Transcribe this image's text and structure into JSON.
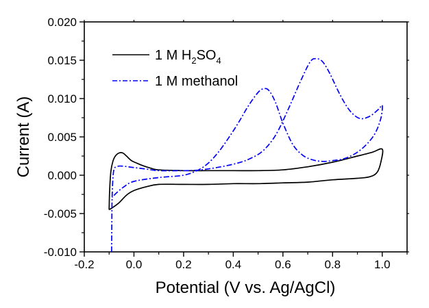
{
  "chart_data": {
    "type": "line",
    "title": "",
    "xlabel": "Potential (V vs. Ag/AgCl)",
    "ylabel": "Current (A)",
    "xlim": [
      -0.2,
      1.1
    ],
    "ylim": [
      -0.01,
      0.02
    ],
    "grid": false,
    "legend_position": "top-left",
    "x_ticks": [
      -0.2,
      0.0,
      0.2,
      0.4,
      0.6,
      0.8,
      1.0
    ],
    "x_tick_labels": [
      "-0.2",
      "0.0",
      "0.2",
      "0.4",
      "0.6",
      "0.8",
      "1.0"
    ],
    "y_ticks": [
      -0.01,
      -0.005,
      0.0,
      0.005,
      0.01,
      0.015,
      0.02
    ],
    "y_tick_labels": [
      "-0.010",
      "-0.005",
      "0.000",
      "0.005",
      "0.010",
      "0.015",
      "0.020"
    ],
    "series": [
      {
        "name": "1 M H2SO4",
        "legend_parts": {
          "pre": "1 M H",
          "sub1": "2",
          "mid": "SO",
          "sub2": "4"
        },
        "color": "#000000",
        "style": "solid",
        "points": [
          [
            -0.1,
            -0.0045
          ],
          [
            -0.098,
            -0.002
          ],
          [
            -0.093,
            0.0005
          ],
          [
            -0.085,
            0.0018
          ],
          [
            -0.075,
            0.0025
          ],
          [
            -0.06,
            0.0029
          ],
          [
            -0.045,
            0.0029
          ],
          [
            -0.03,
            0.0025
          ],
          [
            -0.01,
            0.0019
          ],
          [
            0.01,
            0.0016
          ],
          [
            0.04,
            0.0012
          ],
          [
            0.07,
            0.0009
          ],
          [
            0.1,
            0.0007
          ],
          [
            0.2,
            0.0006
          ],
          [
            0.3,
            0.0006
          ],
          [
            0.4,
            0.0006
          ],
          [
            0.5,
            0.0006
          ],
          [
            0.6,
            0.0007
          ],
          [
            0.7,
            0.0011
          ],
          [
            0.8,
            0.0017
          ],
          [
            0.9,
            0.0025
          ],
          [
            0.96,
            0.003
          ],
          [
            1.0,
            0.0034
          ],
          [
            0.995,
            0.0018
          ],
          [
            0.98,
            0.0004
          ],
          [
            0.95,
            -0.0002
          ],
          [
            0.9,
            -0.0004
          ],
          [
            0.8,
            -0.0006
          ],
          [
            0.7,
            -0.0009
          ],
          [
            0.6,
            -0.001
          ],
          [
            0.5,
            -0.0011
          ],
          [
            0.4,
            -0.0011
          ],
          [
            0.3,
            -0.0012
          ],
          [
            0.2,
            -0.0012
          ],
          [
            0.1,
            -0.0012
          ],
          [
            0.05,
            -0.0015
          ],
          [
            0.0,
            -0.002
          ],
          [
            -0.03,
            -0.0026
          ],
          [
            -0.06,
            -0.0036
          ],
          [
            -0.085,
            -0.0042
          ],
          [
            -0.1,
            -0.0045
          ]
        ]
      },
      {
        "name": "1 M methanol",
        "color": "#0000ff",
        "style": "dashdot",
        "points": [
          [
            -0.09,
            -0.01
          ],
          [
            -0.089,
            -0.006
          ],
          [
            -0.088,
            -0.003
          ],
          [
            -0.085,
            -0.0005
          ],
          [
            -0.08,
            0.0008
          ],
          [
            -0.07,
            0.0011
          ],
          [
            -0.05,
            0.0012
          ],
          [
            0.0,
            0.001
          ],
          [
            0.05,
            0.0008
          ],
          [
            0.1,
            0.0006
          ],
          [
            0.2,
            0.0006
          ],
          [
            0.27,
            0.0007
          ],
          [
            0.35,
            0.0011
          ],
          [
            0.42,
            0.0016
          ],
          [
            0.47,
            0.0022
          ],
          [
            0.52,
            0.0032
          ],
          [
            0.57,
            0.0052
          ],
          [
            0.62,
            0.0085
          ],
          [
            0.67,
            0.0122
          ],
          [
            0.71,
            0.0148
          ],
          [
            0.735,
            0.0152
          ],
          [
            0.76,
            0.0148
          ],
          [
            0.79,
            0.0132
          ],
          [
            0.83,
            0.0105
          ],
          [
            0.87,
            0.0084
          ],
          [
            0.91,
            0.0074
          ],
          [
            0.95,
            0.0077
          ],
          [
            0.985,
            0.0086
          ],
          [
            1.0,
            0.0091
          ],
          [
            0.995,
            0.0075
          ],
          [
            0.975,
            0.0057
          ],
          [
            0.945,
            0.0043
          ],
          [
            0.9,
            0.003
          ],
          [
            0.85,
            0.0022
          ],
          [
            0.8,
            0.0019
          ],
          [
            0.76,
            0.0018
          ],
          [
            0.72,
            0.002
          ],
          [
            0.68,
            0.0026
          ],
          [
            0.64,
            0.004
          ],
          [
            0.6,
            0.0068
          ],
          [
            0.57,
            0.0095
          ],
          [
            0.545,
            0.011
          ],
          [
            0.525,
            0.0113
          ],
          [
            0.5,
            0.0108
          ],
          [
            0.46,
            0.009
          ],
          [
            0.42,
            0.0068
          ],
          [
            0.38,
            0.0048
          ],
          [
            0.34,
            0.003
          ],
          [
            0.3,
            0.0016
          ],
          [
            0.26,
            0.0007
          ],
          [
            0.2,
            0.0
          ],
          [
            0.1,
            -0.0003
          ],
          [
            0.0,
            -0.0008
          ],
          [
            -0.04,
            -0.0015
          ],
          [
            -0.07,
            -0.0023
          ],
          [
            -0.088,
            -0.0029
          ]
        ]
      }
    ]
  }
}
